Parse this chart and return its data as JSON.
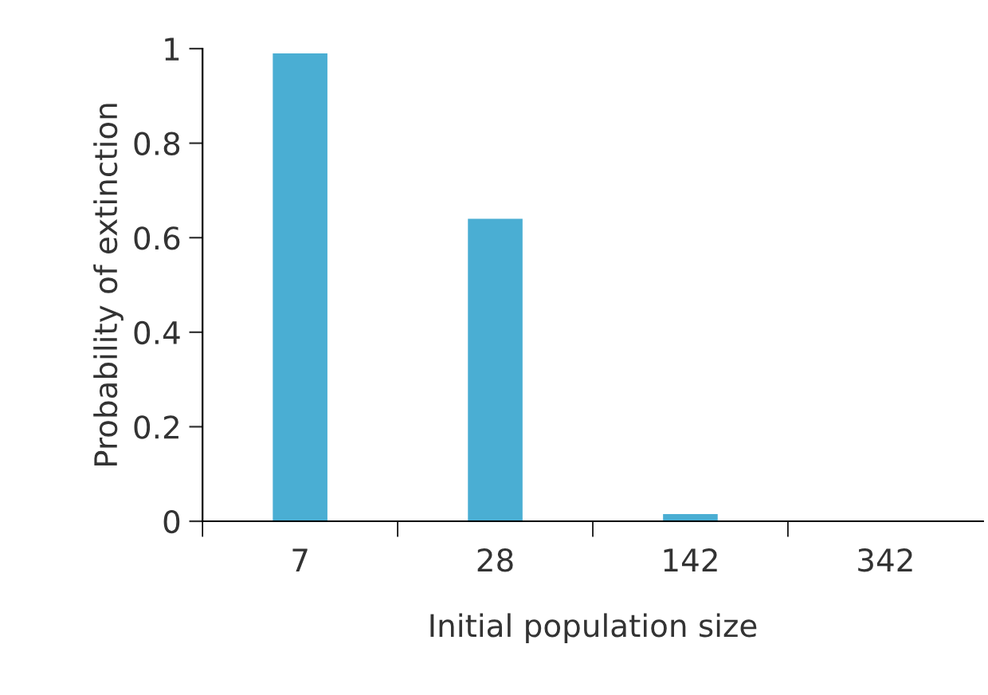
{
  "chart_data": {
    "type": "bar",
    "xlabel": "Initial population size",
    "ylabel": "Probability of extinction",
    "categories": [
      "7",
      "28",
      "142",
      "342"
    ],
    "values": [
      0.99,
      0.64,
      0.015,
      0
    ],
    "color": "#4aaed3",
    "ylim": [
      0,
      1
    ],
    "yticks": [
      0,
      0.2,
      0.4,
      0.6,
      0.8,
      1
    ],
    "grid": false,
    "legend": false
  }
}
